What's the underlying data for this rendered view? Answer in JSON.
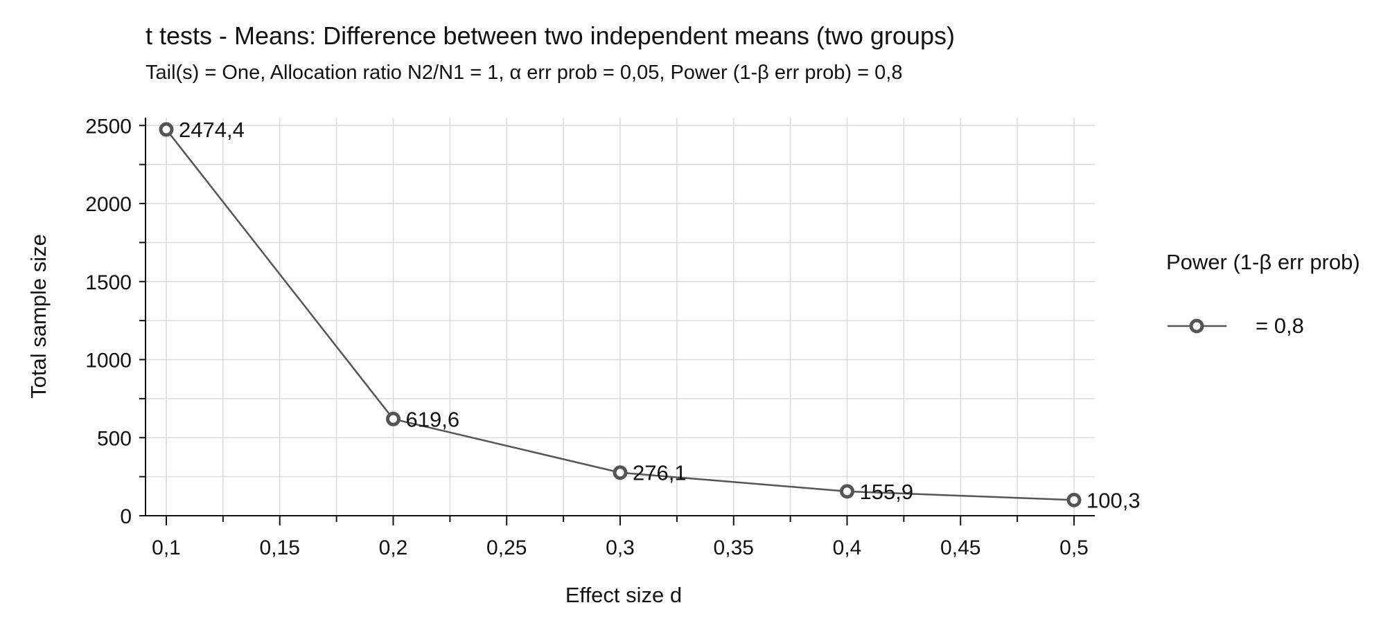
{
  "chart_data": {
    "type": "line",
    "title": "t tests - Means: Difference between two independent means (two groups)",
    "subtitle": "Tail(s) = One, Allocation ratio N2/N1 = 1, α err prob = 0,05, Power (1-β err prob) = 0,8",
    "xlabel": "Effect size d",
    "ylabel": "Total sample size",
    "xlim": [
      0.1,
      0.5
    ],
    "ylim": [
      0,
      2500
    ],
    "x_ticks": [
      {
        "value": 0.1,
        "label": "0,1"
      },
      {
        "value": 0.15,
        "label": "0,15"
      },
      {
        "value": 0.2,
        "label": "0,2"
      },
      {
        "value": 0.25,
        "label": "0,25"
      },
      {
        "value": 0.3,
        "label": "0,3"
      },
      {
        "value": 0.35,
        "label": "0,35"
      },
      {
        "value": 0.4,
        "label": "0,4"
      },
      {
        "value": 0.45,
        "label": "0,45"
      },
      {
        "value": 0.5,
        "label": "0,5"
      }
    ],
    "y_ticks": [
      {
        "value": 0,
        "label": "0"
      },
      {
        "value": 500,
        "label": "500"
      },
      {
        "value": 1000,
        "label": "1000"
      },
      {
        "value": 1500,
        "label": "1500"
      },
      {
        "value": 2000,
        "label": "2000"
      },
      {
        "value": 2500,
        "label": "2500"
      }
    ],
    "grid": true,
    "legend": {
      "position": "right",
      "title": "Power (1-β err prob)",
      "items": [
        {
          "label": "= 0,8"
        }
      ]
    },
    "series": [
      {
        "name": "= 0,8",
        "color": "#555555",
        "marker": "circle-open",
        "points": [
          {
            "x": 0.1,
            "y": 2474.4,
            "label": "2474,4"
          },
          {
            "x": 0.2,
            "y": 619.6,
            "label": "619,6"
          },
          {
            "x": 0.3,
            "y": 276.1,
            "label": "276,1"
          },
          {
            "x": 0.4,
            "y": 155.9,
            "label": "155,9"
          },
          {
            "x": 0.5,
            "y": 100.3,
            "label": "100,3"
          }
        ]
      }
    ]
  }
}
